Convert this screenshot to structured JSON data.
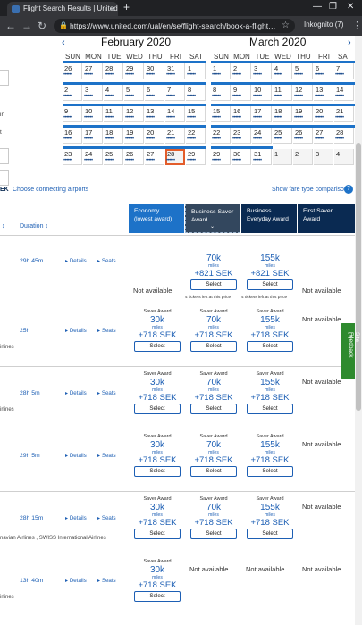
{
  "browser": {
    "tab_title": "Flight Search Results | United Airli…",
    "tab_close": "×",
    "new_tab": "+",
    "url": "https://www.united.com/ual/en/se/flight-search/book-a-flight…",
    "profile": "Inkognito (7)",
    "win_min": "—",
    "win_max": "❐",
    "win_close": "✕"
  },
  "calendar": {
    "prev_arrow": "‹",
    "next_arrow": "›",
    "months": [
      {
        "title": "February 2020",
        "dow": [
          "SUN",
          "MON",
          "TUE",
          "WED",
          "THU",
          "FRI",
          "SAT"
        ],
        "weeks": [
          [
            "26",
            "27",
            "28",
            "29",
            "30",
            "31",
            "1"
          ],
          [
            "2",
            "3",
            "4",
            "5",
            "6",
            "7",
            "8"
          ],
          [
            "9",
            "10",
            "11",
            "12",
            "13",
            "14",
            "15"
          ],
          [
            "16",
            "17",
            "18",
            "19",
            "20",
            "21",
            "22"
          ],
          [
            "23",
            "24",
            "25",
            "26",
            "27",
            "28",
            "29"
          ]
        ]
      },
      {
        "title": "March 2020",
        "dow": [
          "SUN",
          "MON",
          "TUE",
          "WED",
          "THU",
          "FRI",
          "SAT"
        ],
        "weeks": [
          [
            "1",
            "2",
            "3",
            "4",
            "5",
            "6",
            "7"
          ],
          [
            "8",
            "9",
            "10",
            "11",
            "12",
            "13",
            "14"
          ],
          [
            "15",
            "16",
            "17",
            "18",
            "19",
            "20",
            "21"
          ],
          [
            "22",
            "23",
            "24",
            "25",
            "26",
            "27",
            "28"
          ],
          [
            "29",
            "30",
            "31",
            "1",
            "2",
            "3",
            "4"
          ]
        ]
      }
    ],
    "dots": "••••••",
    "left_labels": [
      "in",
      "t"
    ]
  },
  "results": {
    "sort_prefix": "EK",
    "connecting_link": "Choose connecting airports",
    "compare_link": "Show fare type comparison",
    "info_icon": "?",
    "stops_arrow": "↕",
    "duration_label": "Duration ↕",
    "columns": [
      {
        "title": "Economy",
        "sub": "(lowest award)",
        "color": "#1d72c8"
      },
      {
        "title": "Business Saver",
        "sub": "Award",
        "color": "#33475e",
        "arrow": "⌄"
      },
      {
        "title": "Business",
        "sub": "Everyday Award",
        "color": "#0a2a52"
      },
      {
        "title": "First Saver Award",
        "sub": "",
        "color": "#0a2a52"
      }
    ],
    "details_label": "▸ Details",
    "seats_label": "▸ Seats",
    "saver_label": "Saver Award",
    "miles_unit": "miles",
    "select_label": "Select",
    "not_available": "Not available",
    "rows": [
      {
        "duration": "29h 45m",
        "airline": "",
        "economy": {
          "na": true
        },
        "biz_saver": {
          "miles": "70k",
          "tax": "+821 SEK",
          "note": "4 tickets left at this price"
        },
        "biz_every": {
          "miles": "155k",
          "tax": "+821 SEK",
          "note": "4 tickets left at this price"
        },
        "first": {
          "na": true
        }
      },
      {
        "duration": "25h",
        "airline": "irlines",
        "economy": {
          "miles": "30k",
          "tax": "+718 SEK"
        },
        "biz_saver": {
          "miles": "70k",
          "tax": "+718 SEK"
        },
        "biz_every": {
          "miles": "155k",
          "tax": "+718 SEK"
        },
        "first": {
          "na": true
        }
      },
      {
        "duration": "28h 5m",
        "airline": "irlines",
        "economy": {
          "miles": "30k",
          "tax": "+718 SEK"
        },
        "biz_saver": {
          "miles": "70k",
          "tax": "+718 SEK"
        },
        "biz_every": {
          "miles": "155k",
          "tax": "+718 SEK"
        },
        "first": {
          "na": true
        }
      },
      {
        "duration": "29h 5m",
        "airline": "",
        "economy": {
          "miles": "30k",
          "tax": "+718 SEK"
        },
        "biz_saver": {
          "miles": "70k",
          "tax": "+718 SEK"
        },
        "biz_every": {
          "miles": "155k",
          "tax": "+718 SEK"
        },
        "first": {
          "na": true
        }
      },
      {
        "duration": "28h 15m",
        "airline": "navian Airlines , SWISS International Airlines",
        "economy": {
          "miles": "30k",
          "tax": "+718 SEK"
        },
        "biz_saver": {
          "miles": "70k",
          "tax": "+718 SEK"
        },
        "biz_every": {
          "miles": "155k",
          "tax": "+718 SEK"
        },
        "first": {
          "na": true
        }
      },
      {
        "duration": "13h 40m",
        "airline": "irlines",
        "economy": {
          "miles": "30k",
          "tax": "+718 SEK"
        },
        "biz_saver": {
          "na": true
        },
        "biz_every": {
          "na": true
        },
        "first": {
          "na": true
        }
      }
    ]
  },
  "feedback": "Site Feedback",
  "feedback_icon": "[+]"
}
